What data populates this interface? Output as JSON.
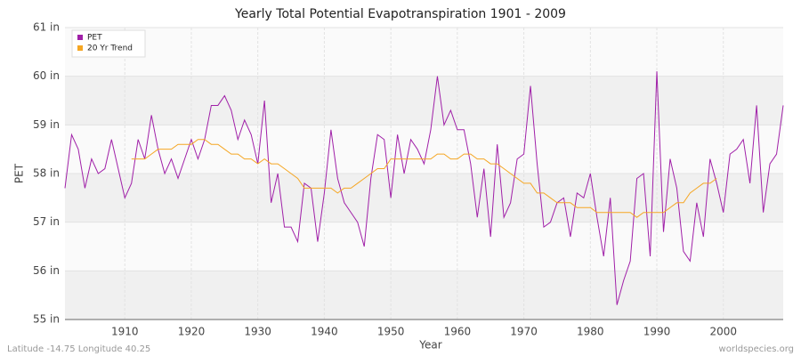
{
  "chart_data": {
    "type": "line",
    "title": "Yearly Total Potential Evapotranspiration 1901 - 2009",
    "xlabel": "Year",
    "ylabel": "PET",
    "footer_left": "Latitude -14.75 Longitude 40.25",
    "footer_right": "worldspecies.org",
    "x": [
      1901,
      1902,
      1903,
      1904,
      1905,
      1906,
      1907,
      1908,
      1909,
      1910,
      1911,
      1912,
      1913,
      1914,
      1915,
      1916,
      1917,
      1918,
      1919,
      1920,
      1921,
      1922,
      1923,
      1924,
      1925,
      1926,
      1927,
      1928,
      1929,
      1930,
      1931,
      1932,
      1933,
      1934,
      1935,
      1936,
      1937,
      1938,
      1939,
      1940,
      1941,
      1942,
      1943,
      1944,
      1945,
      1946,
      1947,
      1948,
      1949,
      1950,
      1951,
      1952,
      1953,
      1954,
      1955,
      1956,
      1957,
      1958,
      1959,
      1960,
      1961,
      1962,
      1963,
      1964,
      1965,
      1966,
      1967,
      1968,
      1969,
      1970,
      1971,
      1972,
      1973,
      1974,
      1975,
      1976,
      1977,
      1978,
      1979,
      1980,
      1981,
      1982,
      1983,
      1984,
      1985,
      1986,
      1987,
      1988,
      1989,
      1990,
      1991,
      1992,
      1993,
      1994,
      1995,
      1996,
      1997,
      1998,
      1999,
      2000,
      2001,
      2002,
      2003,
      2004,
      2005,
      2006,
      2007,
      2008,
      2009
    ],
    "series": [
      {
        "name": "PET",
        "color": "#a020a8",
        "values": [
          57.7,
          58.8,
          58.5,
          57.7,
          58.3,
          58.0,
          58.1,
          58.7,
          58.1,
          57.5,
          57.8,
          58.7,
          58.3,
          59.2,
          58.5,
          58.0,
          58.3,
          57.9,
          58.3,
          58.7,
          58.3,
          58.7,
          59.4,
          59.4,
          59.6,
          59.3,
          58.7,
          59.1,
          58.8,
          58.2,
          59.5,
          57.4,
          58.0,
          56.9,
          56.9,
          56.6,
          57.8,
          57.7,
          56.6,
          57.6,
          58.9,
          57.9,
          57.4,
          57.2,
          57.0,
          56.5,
          57.9,
          58.8,
          58.7,
          57.5,
          58.8,
          58.0,
          58.7,
          58.5,
          58.2,
          58.9,
          60.0,
          59.0,
          59.3,
          58.9,
          58.9,
          58.2,
          57.1,
          58.1,
          56.7,
          58.6,
          57.1,
          57.4,
          58.3,
          58.4,
          59.8,
          58.2,
          56.9,
          57.0,
          57.4,
          57.5,
          56.7,
          57.6,
          57.5,
          58.0,
          57.1,
          56.3,
          57.5,
          55.3,
          55.8,
          56.2,
          57.9,
          58.0,
          56.3,
          60.1,
          56.8,
          58.3,
          57.7,
          56.4,
          56.2,
          57.4,
          56.7,
          58.3,
          57.8,
          57.2,
          58.4,
          58.5,
          58.7,
          57.8,
          59.4,
          57.2,
          58.2,
          58.4,
          59.4
        ]
      },
      {
        "name": "20 Yr Trend",
        "color": "#f5a623",
        "values": [
          null,
          null,
          null,
          null,
          null,
          null,
          null,
          null,
          null,
          null,
          58.3,
          58.3,
          58.3,
          58.4,
          58.5,
          58.5,
          58.5,
          58.6,
          58.6,
          58.6,
          58.7,
          58.7,
          58.6,
          58.6,
          58.5,
          58.4,
          58.4,
          58.3,
          58.3,
          58.2,
          58.3,
          58.2,
          58.2,
          58.1,
          58.0,
          57.9,
          57.7,
          57.7,
          57.7,
          57.7,
          57.7,
          57.6,
          57.7,
          57.7,
          57.8,
          57.9,
          58.0,
          58.1,
          58.1,
          58.3,
          58.3,
          58.3,
          58.3,
          58.3,
          58.3,
          58.3,
          58.4,
          58.4,
          58.3,
          58.3,
          58.4,
          58.4,
          58.3,
          58.3,
          58.2,
          58.2,
          58.1,
          58.0,
          57.9,
          57.8,
          57.8,
          57.6,
          57.6,
          57.5,
          57.4,
          57.4,
          57.4,
          57.3,
          57.3,
          57.3,
          57.2,
          57.2,
          57.2,
          57.2,
          57.2,
          57.2,
          57.1,
          57.2,
          57.2,
          57.2,
          57.2,
          57.3,
          57.4,
          57.4,
          57.6,
          57.7,
          57.8,
          57.8,
          57.9,
          null,
          null,
          null,
          null,
          null,
          null,
          null,
          null,
          null,
          null
        ]
      }
    ],
    "xlim": [
      1901,
      2009
    ],
    "xticks": [
      1910,
      1920,
      1930,
      1940,
      1950,
      1960,
      1970,
      1980,
      1990,
      2000
    ],
    "ylim": [
      55,
      61
    ],
    "yticks": [
      {
        "value": 55,
        "label": "55 in"
      },
      {
        "value": 56,
        "label": "56 in"
      },
      {
        "value": 57,
        "label": "57 in"
      },
      {
        "value": 58,
        "label": "58 in"
      },
      {
        "value": 59,
        "label": "59 in"
      },
      {
        "value": 60,
        "label": "60 in"
      },
      {
        "value": 61,
        "label": "61 in"
      }
    ],
    "grid": true,
    "legend": "top-left"
  }
}
